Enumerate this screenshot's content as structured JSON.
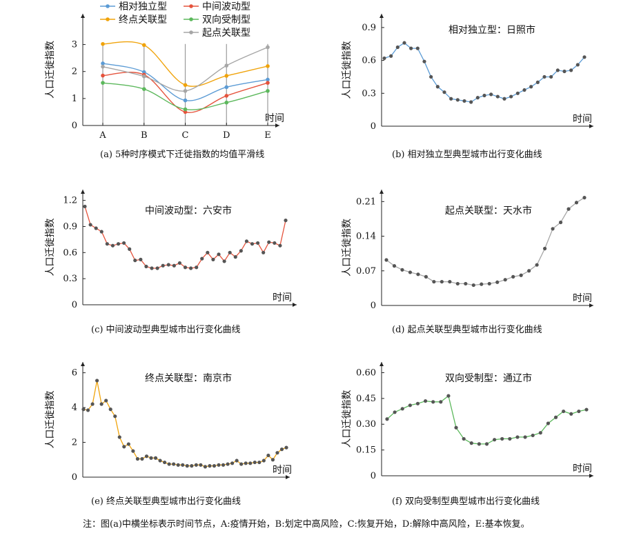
{
  "figure_note": "注：图(a)中横坐标表示时间节点，A:疫情开始，B:划定中高风险，C:恢复开始，D:解除中高风险，E:基本恢复。",
  "chart_data": [
    {
      "id": "a",
      "type": "line",
      "caption": "(a) 5种时序模式下迁徙指数的均值平滑线",
      "ylabel": "人口迁徙指数",
      "xlabel": "时间",
      "categories": [
        "A",
        "B",
        "C",
        "D",
        "E"
      ],
      "ylim": [
        0,
        3.5
      ],
      "yticks": [
        "0",
        "1",
        "2",
        "3"
      ],
      "legend_position": "top-center",
      "smooth": true,
      "series": [
        {
          "name": "相对独立型",
          "color": "#5b9bd5",
          "values": [
            2.3,
            1.98,
            0.93,
            1.42,
            1.7
          ]
        },
        {
          "name": "中间波动型",
          "color": "#e5533c",
          "values": [
            1.85,
            1.88,
            0.5,
            1.1,
            1.58
          ]
        },
        {
          "name": "终点关联型",
          "color": "#f0a30a",
          "values": [
            3.02,
            2.98,
            1.5,
            1.84,
            2.2
          ]
        },
        {
          "name": "双向受制型",
          "color": "#5cb85c",
          "values": [
            1.58,
            1.35,
            0.6,
            0.85,
            1.28
          ]
        },
        {
          "name": "起点关联型",
          "color": "#a6a6a6",
          "values": [
            2.18,
            1.82,
            1.28,
            2.22,
            2.9
          ]
        }
      ]
    },
    {
      "id": "b",
      "type": "line",
      "caption": "(b) 相对独立型典型城市出行变化曲线",
      "title": "相对独立型：日照市",
      "ylabel": "人口迁徙指数",
      "xlabel": "时间",
      "ylim": [
        0,
        1.0
      ],
      "yticks": [
        "0",
        "0.3",
        "0.6",
        "0.9"
      ],
      "line_color": "#5b9bd5",
      "values": [
        0.62,
        0.64,
        0.72,
        0.76,
        0.71,
        0.71,
        0.59,
        0.45,
        0.36,
        0.31,
        0.25,
        0.24,
        0.23,
        0.22,
        0.26,
        0.28,
        0.29,
        0.27,
        0.25,
        0.27,
        0.3,
        0.33,
        0.36,
        0.4,
        0.45,
        0.45,
        0.51,
        0.5,
        0.51,
        0.56,
        0.63
      ]
    },
    {
      "id": "c",
      "type": "line",
      "caption": "(c) 中间波动型典型城市出行变化曲线",
      "title": "中间波动型：六安市",
      "ylabel": "人口迁徙指数",
      "xlabel": "时间",
      "ylim": [
        0,
        1.3
      ],
      "yticks": [
        "0",
        "0.3",
        "0.6",
        "0.9",
        "1.2"
      ],
      "line_color": "#e5533c",
      "values": [
        1.13,
        0.92,
        0.88,
        0.84,
        0.7,
        0.68,
        0.7,
        0.71,
        0.64,
        0.51,
        0.52,
        0.44,
        0.42,
        0.42,
        0.45,
        0.46,
        0.45,
        0.48,
        0.43,
        0.42,
        0.43,
        0.53,
        0.6,
        0.52,
        0.58,
        0.5,
        0.6,
        0.55,
        0.62,
        0.73,
        0.7,
        0.71,
        0.6,
        0.72,
        0.71,
        0.68,
        0.97
      ]
    },
    {
      "id": "d",
      "type": "line",
      "caption": "(d) 起点关联型典型城市出行变化曲线",
      "title": "起点关联型：天水市",
      "ylabel": "人口迁徙指数",
      "xlabel": "时间",
      "ylim": [
        0,
        0.23
      ],
      "yticks": [
        "0",
        "0.07",
        "0.14",
        "0.21"
      ],
      "line_color": "#a6a6a6",
      "values": [
        0.092,
        0.08,
        0.072,
        0.067,
        0.063,
        0.058,
        0.048,
        0.048,
        0.048,
        0.044,
        0.044,
        0.041,
        0.043,
        0.044,
        0.047,
        0.052,
        0.058,
        0.061,
        0.07,
        0.082,
        0.115,
        0.155,
        0.168,
        0.195,
        0.208,
        0.218
      ]
    },
    {
      "id": "e",
      "type": "line",
      "caption": "(e) 终点关联型典型城市出行变化曲线",
      "title": "终点关联型：南京市",
      "ylabel": "人口迁徙指数",
      "xlabel": "时间",
      "ylim": [
        0,
        6.5
      ],
      "yticks": [
        "0",
        "2",
        "4",
        "6"
      ],
      "line_color": "#f0a30a",
      "values": [
        3.9,
        3.85,
        4.2,
        5.55,
        4.2,
        4.4,
        3.9,
        3.5,
        2.3,
        1.75,
        1.9,
        1.5,
        1.05,
        1.05,
        1.2,
        1.1,
        1.1,
        0.95,
        0.85,
        0.75,
        0.75,
        0.7,
        0.7,
        0.65,
        0.65,
        0.7,
        0.7,
        0.6,
        0.65,
        0.65,
        0.7,
        0.7,
        0.75,
        0.8,
        0.95,
        0.75,
        0.8,
        0.8,
        0.85,
        0.85,
        0.95,
        1.25,
        1.0,
        1.4,
        1.6,
        1.7
      ]
    },
    {
      "id": "f",
      "type": "line",
      "caption": "(f) 双向受制型典型城市出行变化曲线",
      "title": "双向受制型：通辽市",
      "ylabel": "人口迁徙指数",
      "xlabel": "时间",
      "ylim": [
        0,
        0.63
      ],
      "yticks": [
        "0",
        "0.15",
        "0.30",
        "0.45",
        "0.60"
      ],
      "line_color": "#5cb85c",
      "values": [
        0.33,
        0.37,
        0.39,
        0.41,
        0.42,
        0.435,
        0.43,
        0.43,
        0.465,
        0.28,
        0.215,
        0.19,
        0.185,
        0.185,
        0.21,
        0.215,
        0.215,
        0.225,
        0.225,
        0.235,
        0.25,
        0.305,
        0.34,
        0.375,
        0.36,
        0.375,
        0.385
      ]
    }
  ]
}
